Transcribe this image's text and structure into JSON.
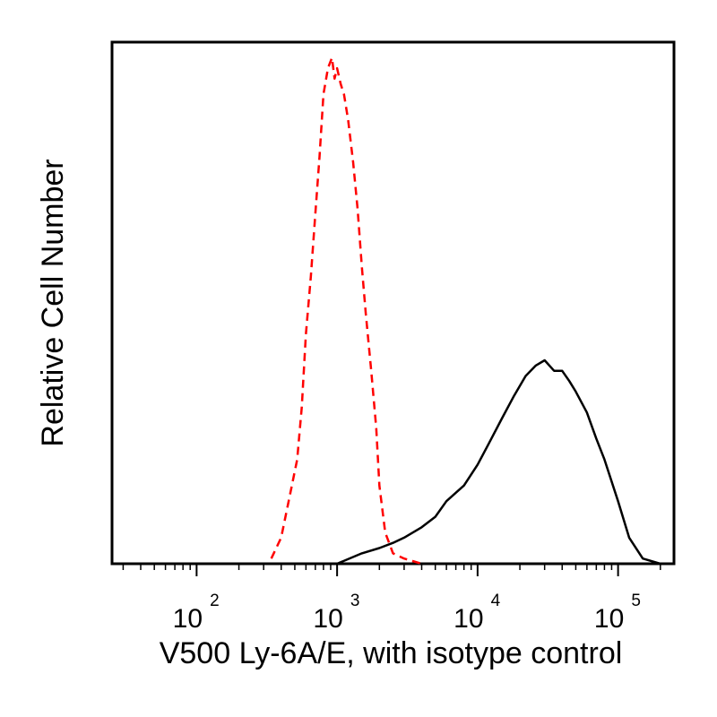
{
  "chart_data": {
    "type": "line",
    "title": "",
    "xlabel": "V500 Ly-6A/E, with isotype control",
    "ylabel": "Relative Cell Number",
    "x_scale": "log",
    "xlim": [
      25,
      250000
    ],
    "ylim": [
      0,
      1.0
    ],
    "grid": false,
    "legend": "none",
    "x_ticks": [
      {
        "value": 100,
        "base": "10",
        "exp": "2"
      },
      {
        "value": 1000,
        "base": "10",
        "exp": "3"
      },
      {
        "value": 10000,
        "base": "10",
        "exp": "4"
      },
      {
        "value": 100000,
        "base": "10",
        "exp": "5"
      }
    ],
    "series": [
      {
        "style": "dashed",
        "color": "#ff0000",
        "x": [
          340,
          400,
          460,
          520,
          560,
          600,
          650,
          700,
          750,
          800,
          860,
          920,
          960,
          1000,
          1060,
          1120,
          1200,
          1300,
          1400,
          1500,
          1600,
          1750,
          1900,
          2000,
          2200,
          2500,
          3000,
          4000
        ],
        "y": [
          0.01,
          0.05,
          0.13,
          0.2,
          0.3,
          0.44,
          0.55,
          0.67,
          0.78,
          0.9,
          0.95,
          0.97,
          0.93,
          0.95,
          0.92,
          0.9,
          0.85,
          0.77,
          0.68,
          0.57,
          0.48,
          0.37,
          0.26,
          0.15,
          0.06,
          0.02,
          0.01,
          0.0
        ]
      },
      {
        "style": "solid",
        "color": "#000000",
        "x": [
          1000,
          1500,
          2000,
          2500,
          3000,
          4000,
          5000,
          6000,
          8000,
          10000,
          12000,
          15000,
          18000,
          22000,
          26000,
          30000,
          35000,
          40000,
          45000,
          50000,
          60000,
          70000,
          80000,
          100000,
          120000,
          150000,
          200000
        ],
        "y": [
          0.0,
          0.02,
          0.03,
          0.04,
          0.05,
          0.07,
          0.09,
          0.12,
          0.15,
          0.19,
          0.23,
          0.28,
          0.32,
          0.36,
          0.38,
          0.39,
          0.37,
          0.37,
          0.35,
          0.33,
          0.29,
          0.24,
          0.2,
          0.12,
          0.05,
          0.01,
          0.0
        ]
      }
    ]
  }
}
